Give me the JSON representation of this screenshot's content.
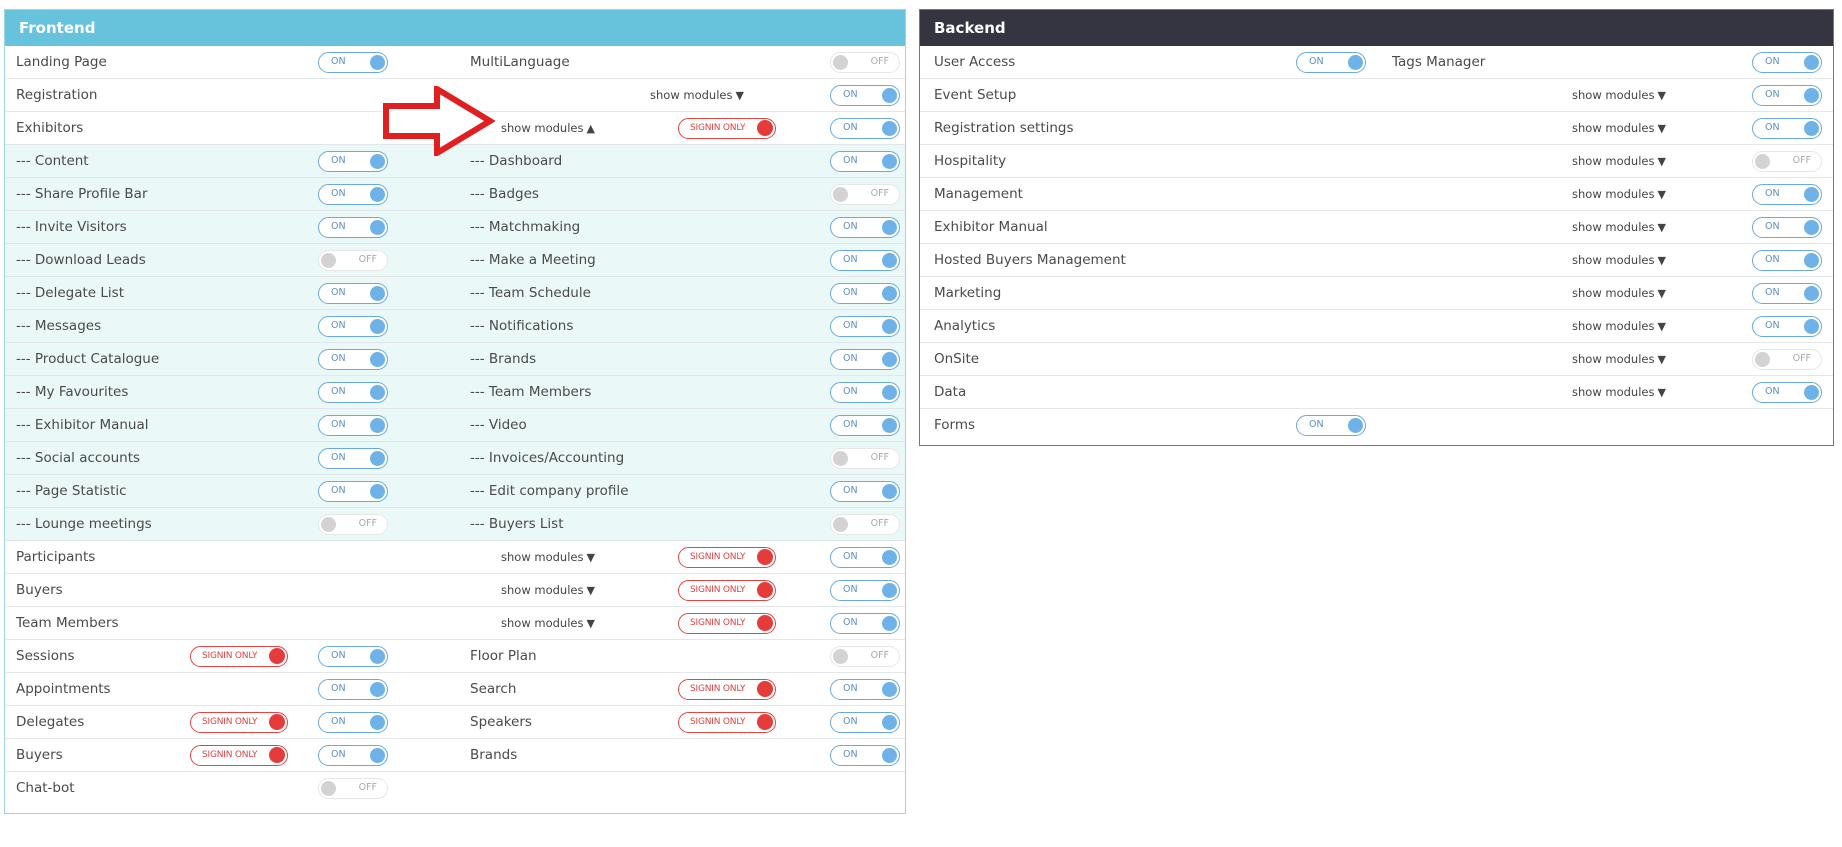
{
  "frontend": {
    "title": "Frontend",
    "rows": [
      {
        "left": {
          "label": "Landing Page",
          "toggle": "ON"
        },
        "right": {
          "label": "MultiLanguage",
          "toggle": "OFF"
        }
      },
      {
        "left": {
          "label": "Registration"
        },
        "mid": {
          "show": "show modules",
          "caret": "▼"
        },
        "right": {
          "toggle": "ON"
        }
      },
      {
        "left": {
          "label": "Exhibitors"
        },
        "mid": {
          "show": "show modules",
          "caret": "▲",
          "signin": "SIGNIN ONLY"
        },
        "right": {
          "toggle": "ON"
        }
      },
      {
        "sub": true,
        "left": {
          "label": "--- Content",
          "toggle": "ON"
        },
        "right": {
          "label": "--- Dashboard",
          "toggle": "ON"
        }
      },
      {
        "sub": true,
        "left": {
          "label": "--- Share Profile Bar",
          "toggle": "ON"
        },
        "right": {
          "label": "--- Badges",
          "toggle": "OFF"
        }
      },
      {
        "sub": true,
        "left": {
          "label": "--- Invite Visitors",
          "toggle": "ON"
        },
        "right": {
          "label": "--- Matchmaking",
          "toggle": "ON"
        }
      },
      {
        "sub": true,
        "left": {
          "label": "--- Download Leads",
          "toggle": "OFF"
        },
        "right": {
          "label": "--- Make a Meeting",
          "toggle": "ON"
        }
      },
      {
        "sub": true,
        "left": {
          "label": "--- Delegate List",
          "toggle": "ON"
        },
        "right": {
          "label": "--- Team Schedule",
          "toggle": "ON"
        }
      },
      {
        "sub": true,
        "left": {
          "label": "--- Messages",
          "toggle": "ON"
        },
        "right": {
          "label": "--- Notifications",
          "toggle": "ON"
        }
      },
      {
        "sub": true,
        "left": {
          "label": "--- Product Catalogue",
          "toggle": "ON"
        },
        "right": {
          "label": "--- Brands",
          "toggle": "ON"
        }
      },
      {
        "sub": true,
        "left": {
          "label": "--- My Favourites",
          "toggle": "ON"
        },
        "right": {
          "label": "--- Team Members",
          "toggle": "ON"
        }
      },
      {
        "sub": true,
        "left": {
          "label": "--- Exhibitor Manual",
          "toggle": "ON"
        },
        "right": {
          "label": "--- Video",
          "toggle": "ON"
        }
      },
      {
        "sub": true,
        "left": {
          "label": "--- Social accounts",
          "toggle": "ON"
        },
        "right": {
          "label": "--- Invoices/Accounting",
          "toggle": "OFF"
        }
      },
      {
        "sub": true,
        "left": {
          "label": "--- Page Statistic",
          "toggle": "ON"
        },
        "right": {
          "label": "--- Edit company profile",
          "toggle": "ON"
        }
      },
      {
        "sub": true,
        "left": {
          "label": "--- Lounge meetings",
          "toggle": "OFF"
        },
        "right": {
          "label": "--- Buyers List",
          "toggle": "OFF"
        }
      },
      {
        "left": {
          "label": "Participants"
        },
        "mid": {
          "show": "show modules",
          "caret": "▼",
          "signin": "SIGNIN ONLY"
        },
        "right": {
          "toggle": "ON"
        }
      },
      {
        "left": {
          "label": "Buyers"
        },
        "mid": {
          "show": "show modules",
          "caret": "▼",
          "signin": "SIGNIN ONLY"
        },
        "right": {
          "toggle": "ON"
        }
      },
      {
        "left": {
          "label": "Team Members"
        },
        "mid": {
          "show": "show modules",
          "caret": "▼",
          "signin": "SIGNIN ONLY"
        },
        "right": {
          "toggle": "ON"
        }
      },
      {
        "left": {
          "label": "Sessions",
          "signin": "SIGNIN ONLY",
          "toggle": "ON"
        },
        "right": {
          "label": "Floor Plan",
          "toggle": "OFF"
        }
      },
      {
        "left": {
          "label": "Appointments",
          "toggle": "ON"
        },
        "right": {
          "label": "Search",
          "signin": "SIGNIN ONLY",
          "toggle": "ON"
        }
      },
      {
        "left": {
          "label": "Delegates",
          "signin": "SIGNIN ONLY",
          "toggle": "ON"
        },
        "right": {
          "label": "Speakers",
          "signin": "SIGNIN ONLY",
          "toggle": "ON"
        }
      },
      {
        "left": {
          "label": "Buyers",
          "signin": "SIGNIN ONLY",
          "toggle": "ON"
        },
        "right": {
          "label": "Brands",
          "toggle": "ON"
        }
      },
      {
        "left": {
          "label": "Chat-bot",
          "toggle": "OFF"
        }
      }
    ]
  },
  "backend": {
    "title": "Backend",
    "rows": [
      {
        "label": "User Access",
        "toggle": "ON",
        "right_label": "Tags Manager",
        "right_toggle": "ON"
      },
      {
        "label": "Event Setup",
        "show": "show modules",
        "caret": "▼",
        "right_toggle": "ON"
      },
      {
        "label": "Registration settings",
        "show": "show modules",
        "caret": "▼",
        "right_toggle": "ON"
      },
      {
        "label": "Hospitality",
        "show": "show modules",
        "caret": "▼",
        "right_toggle": "OFF"
      },
      {
        "label": "Management",
        "show": "show modules",
        "caret": "▼",
        "right_toggle": "ON"
      },
      {
        "label": "Exhibitor Manual",
        "show": "show modules",
        "caret": "▼",
        "right_toggle": "ON"
      },
      {
        "label": "Hosted Buyers Management",
        "show": "show modules",
        "caret": "▼",
        "right_toggle": "ON"
      },
      {
        "label": "Marketing",
        "show": "show modules",
        "caret": "▼",
        "right_toggle": "ON"
      },
      {
        "label": "Analytics",
        "show": "show modules",
        "caret": "▼",
        "right_toggle": "ON"
      },
      {
        "label": "OnSite",
        "show": "show modules",
        "caret": "▼",
        "right_toggle": "OFF"
      },
      {
        "label": "Data",
        "show": "show modules",
        "caret": "▼",
        "right_toggle": "ON"
      },
      {
        "label": "Forms",
        "toggle": "ON"
      }
    ]
  },
  "colors": {
    "frontend_header": "#67c3dc",
    "backend_header": "#343541",
    "toggle_on": "#6fb2e8",
    "signin": "#e53b3b",
    "arrow": "#e02020",
    "sub_row_bg": "#eaf8f7"
  }
}
